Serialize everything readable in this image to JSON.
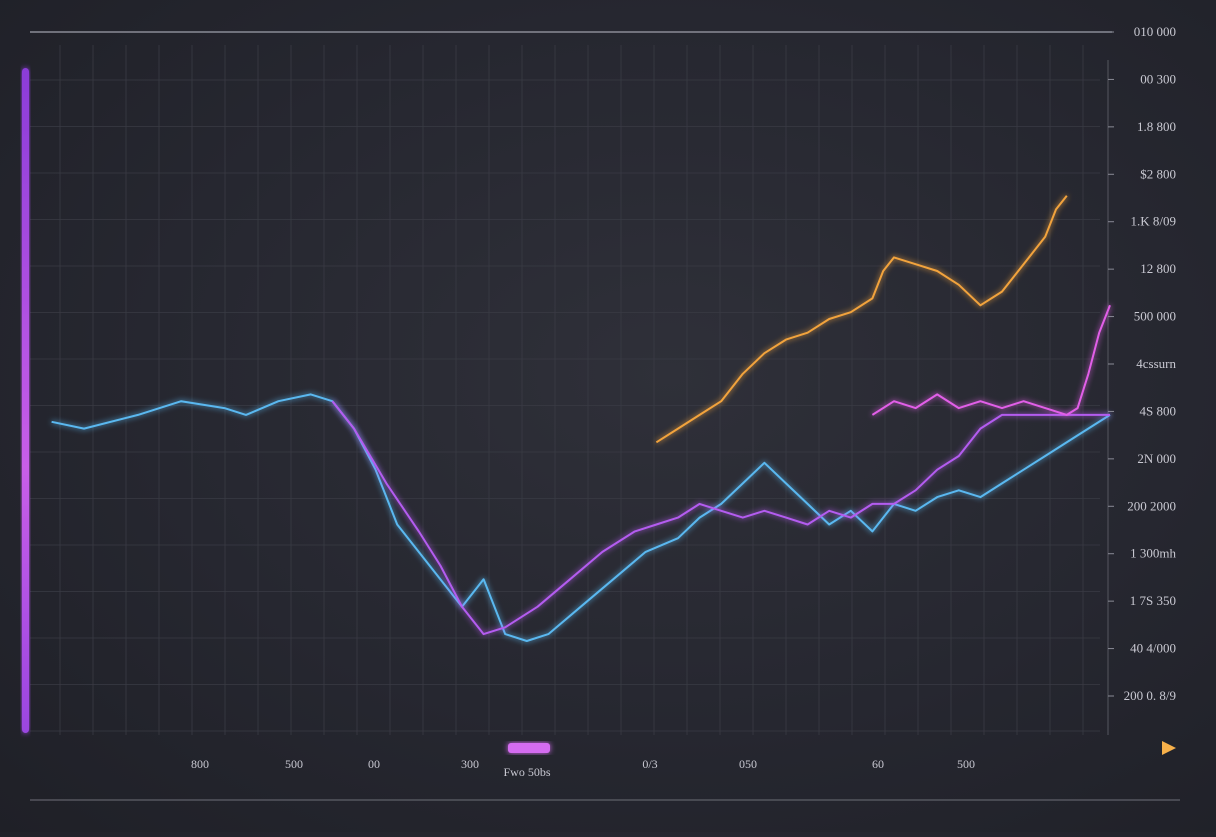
{
  "chart_data": {
    "type": "line",
    "title": "",
    "xlabel": "Fwo 50bs",
    "ylabel": "",
    "grid": true,
    "legend": "none",
    "x_tick_labels": [
      "800",
      "500",
      "00",
      "300",
      "0/3",
      "050",
      "60",
      "500"
    ],
    "y_tick_labels": [
      "010 000",
      "00 300",
      "1.8 800",
      "$2 800",
      "1.K 8/09",
      "12 800",
      "500 000",
      "4cssurn",
      "4S 800",
      "2N 000",
      "200 2000",
      "1 300mh",
      "1 7S 350",
      "40 4/000",
      "200 0. 8/9"
    ],
    "ylim": [
      0,
      100
    ],
    "colors": {
      "background": "#26272f",
      "grid": "#3a3b45",
      "blue": "#5ab8f0",
      "violet": "#b45cf0",
      "magenta": "#e25ee8",
      "orange": "#f2a33c"
    },
    "series": [
      {
        "color": "#5ab8f0",
        "values": [
          [
            2,
            45
          ],
          [
            5,
            44
          ],
          [
            10,
            46
          ],
          [
            14,
            48
          ],
          [
            18,
            47
          ],
          [
            20,
            46
          ],
          [
            23,
            48
          ],
          [
            26,
            49
          ],
          [
            28,
            48
          ],
          [
            30,
            44
          ],
          [
            32,
            38
          ],
          [
            34,
            30
          ],
          [
            37,
            24
          ],
          [
            40,
            18
          ],
          [
            42,
            22
          ],
          [
            44,
            14
          ],
          [
            46,
            13
          ],
          [
            48,
            14
          ],
          [
            51,
            18
          ],
          [
            54,
            22
          ],
          [
            57,
            26
          ],
          [
            60,
            28
          ],
          [
            62,
            31
          ],
          [
            64,
            33
          ],
          [
            66,
            36
          ],
          [
            68,
            39
          ],
          [
            70,
            36
          ],
          [
            72,
            33
          ],
          [
            74,
            30
          ],
          [
            76,
            32
          ],
          [
            78,
            29
          ],
          [
            80,
            33
          ],
          [
            82,
            32
          ],
          [
            84,
            34
          ],
          [
            86,
            35
          ],
          [
            88,
            34
          ],
          [
            90,
            36
          ],
          [
            92,
            38
          ],
          [
            94,
            40
          ],
          [
            97,
            43
          ],
          [
            100,
            46
          ]
        ]
      },
      {
        "color": "#b45cf0",
        "values": [
          [
            28,
            48
          ],
          [
            30,
            44
          ],
          [
            33,
            36
          ],
          [
            36,
            29
          ],
          [
            38,
            24
          ],
          [
            40,
            18
          ],
          [
            42,
            14
          ],
          [
            44,
            15
          ],
          [
            47,
            18
          ],
          [
            50,
            22
          ],
          [
            53,
            26
          ],
          [
            56,
            29
          ],
          [
            58,
            30
          ],
          [
            60,
            31
          ],
          [
            62,
            33
          ],
          [
            64,
            32
          ],
          [
            66,
            31
          ],
          [
            68,
            32
          ],
          [
            70,
            31
          ],
          [
            72,
            30
          ],
          [
            74,
            32
          ],
          [
            76,
            31
          ],
          [
            78,
            33
          ],
          [
            80,
            33
          ],
          [
            82,
            35
          ],
          [
            84,
            38
          ],
          [
            86,
            40
          ],
          [
            88,
            44
          ],
          [
            90,
            46
          ],
          [
            95,
            46
          ],
          [
            100,
            46
          ]
        ]
      },
      {
        "color": "#e25ee8",
        "values": [
          [
            78,
            46
          ],
          [
            80,
            48
          ],
          [
            82,
            47
          ],
          [
            84,
            49
          ],
          [
            86,
            47
          ],
          [
            88,
            48
          ],
          [
            90,
            47
          ],
          [
            92,
            48
          ],
          [
            94,
            47
          ],
          [
            96,
            46
          ],
          [
            97,
            47
          ],
          [
            98,
            52
          ],
          [
            99,
            58
          ],
          [
            100,
            62
          ]
        ]
      },
      {
        "color": "#f2a33c",
        "values": [
          [
            58,
            42
          ],
          [
            60,
            44
          ],
          [
            62,
            46
          ],
          [
            64,
            48
          ],
          [
            66,
            52
          ],
          [
            68,
            55
          ],
          [
            70,
            57
          ],
          [
            72,
            58
          ],
          [
            74,
            60
          ],
          [
            76,
            61
          ],
          [
            78,
            63
          ],
          [
            79,
            67
          ],
          [
            80,
            69
          ],
          [
            82,
            68
          ],
          [
            84,
            67
          ],
          [
            86,
            65
          ],
          [
            88,
            62
          ],
          [
            90,
            64
          ],
          [
            92,
            68
          ],
          [
            94,
            72
          ],
          [
            95,
            76
          ],
          [
            96,
            78
          ]
        ]
      }
    ]
  }
}
